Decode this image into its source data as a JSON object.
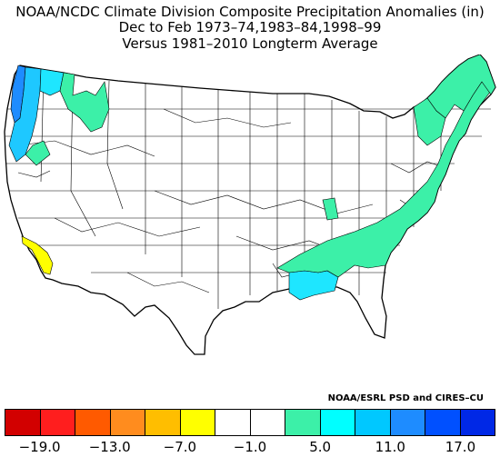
{
  "header": {
    "line1": "NOAA/NCDC Climate Division Composite Precipitation Anomalies (in)",
    "line2": "Dec to Feb  1973–74,1983–84,1998–99",
    "line3": "Versus 1981–2010 Longterm Average"
  },
  "map": {
    "region": "Contiguous United States climate divisions",
    "highlighted_areas": [
      {
        "region": "Pacific Northwest coast",
        "anomaly_color": "#1ec8ff"
      },
      {
        "region": "Western Washington interior",
        "anomaly_color": "#1e8cff"
      },
      {
        "region": "Northern Idaho / Montana",
        "anomaly_color": "#3cf0a8"
      },
      {
        "region": "Southern California coast",
        "anomaly_color": "#ffff00"
      },
      {
        "region": "Lower Mississippi Valley",
        "anomaly_color": "#1ee6ff"
      },
      {
        "region": "Southeast / Mid-Atlantic / New England",
        "anomaly_color": "#3cf0a8"
      }
    ]
  },
  "credit": "NOAA/ESRL PSD and CIRES–CU",
  "legend": {
    "colors": [
      "#d20000",
      "#ff1e1e",
      "#ff5a00",
      "#ff8c1e",
      "#ffbe00",
      "#ffff00",
      "#ffffff",
      "#ffffff",
      "#3cf0a8",
      "#00ffff",
      "#00c8ff",
      "#1e8cff",
      "#0050ff",
      "#0028e6"
    ],
    "ticks": [
      "−19.0",
      "−13.0",
      "−7.0",
      "−1.0",
      "5.0",
      "11.0",
      "17.0"
    ]
  }
}
